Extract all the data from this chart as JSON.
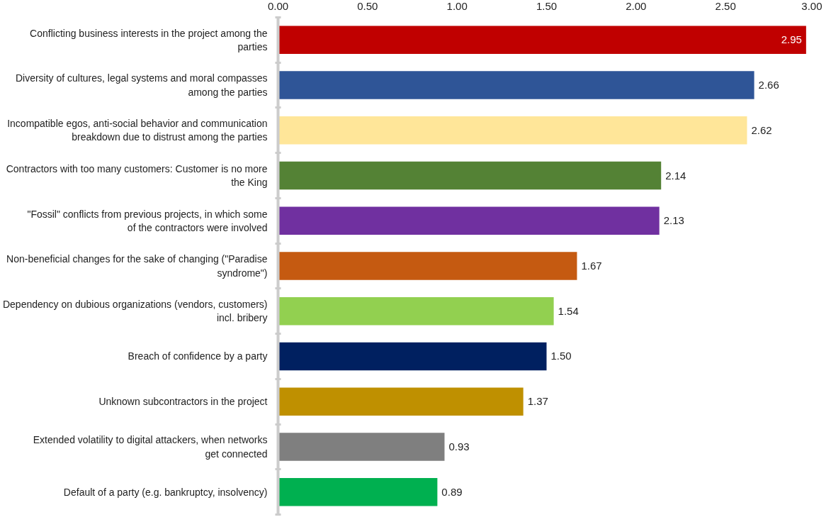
{
  "chart_data": {
    "type": "bar",
    "orientation": "horizontal",
    "categories": [
      "Conflicting business interests in the project among the parties",
      "Diversity of cultures, legal systems and moral compasses among the parties",
      "Incompatible egos, anti-social behavior and communication breakdown due to distrust among the parties",
      "Contractors with too many customers: Customer is no more the King",
      "\"Fossil\" conflicts from previous projects, in which some of the contractors were involved",
      "Non-beneficial changes for the sake of changing (\"Paradise syndrome\")",
      "Dependency on dubious organizations (vendors, customers) incl. bribery",
      "Breach of confidence by a party",
      "Unknown subcontractors in the project",
      "Extended volatility to digital attackers, when networks get connected",
      "Default of a party (e.g. bankruptcy, insolvency)"
    ],
    "values": [
      2.95,
      2.66,
      2.62,
      2.14,
      2.13,
      1.67,
      1.54,
      1.5,
      1.37,
      0.93,
      0.89
    ],
    "value_labels": [
      "2.95",
      "2.66",
      "2.62",
      "2.14",
      "2.13",
      "1.67",
      "1.54",
      "1.50",
      "1.37",
      "0.93",
      "0.89"
    ],
    "colors": [
      "#c00000",
      "#2f5597",
      "#ffe699",
      "#548235",
      "#7030a0",
      "#c55a11",
      "#92d050",
      "#002060",
      "#bf9000",
      "#7f7f7f",
      "#00b050"
    ],
    "xlim": [
      0,
      3
    ],
    "xticks": [
      {
        "value": 0,
        "label": "0.00"
      },
      {
        "value": 0.5,
        "label": "0.50"
      },
      {
        "value": 1,
        "label": "1.00"
      },
      {
        "value": 1.5,
        "label": "1.50"
      },
      {
        "value": 2,
        "label": "2.00"
      },
      {
        "value": 2.5,
        "label": "2.50"
      },
      {
        "value": 3,
        "label": "3.00"
      }
    ],
    "grid": false
  }
}
